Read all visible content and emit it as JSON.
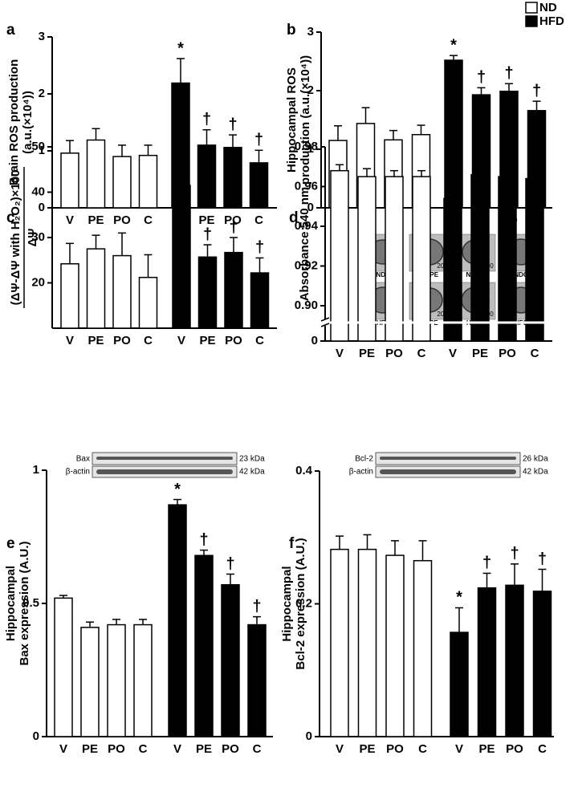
{
  "legend": [
    {
      "name": "ND",
      "color": "#ffffff"
    },
    {
      "name": "HFD",
      "color": "#000000"
    }
  ],
  "micrographs": {
    "labels": [
      "NDV",
      "NDPE",
      "NDPO",
      "NDC",
      "HFV",
      "HFPE",
      "HFPO",
      "HFC"
    ],
    "scale_label": "200"
  },
  "blots": [
    {
      "rows": [
        {
          "label": "Bax",
          "size": "23 kDa"
        },
        {
          "label": "β-actin",
          "size": "42 kDa"
        }
      ]
    },
    {
      "rows": [
        {
          "label": "Bcl-2",
          "size": "26 kDa"
        },
        {
          "label": "β-actin",
          "size": "42 kDa"
        }
      ]
    }
  ],
  "chart_data": [
    {
      "type": "bar",
      "panel": "a",
      "ylabel": [
        "Brain ROS production",
        "(a.u.(×10⁴))"
      ],
      "categories": [
        "V",
        "PE",
        "PO",
        "C",
        "V",
        "PE",
        "PO",
        "C"
      ],
      "series": [
        {
          "color": "#ffffff",
          "values": [
            0.96,
            1.19,
            0.9,
            0.92,
            null,
            null,
            null,
            null
          ],
          "errors": [
            0.22,
            0.2,
            0.2,
            0.18,
            null,
            null,
            null,
            null
          ]
        },
        {
          "color": "#000000",
          "values": [
            null,
            null,
            null,
            null,
            2.19,
            1.1,
            1.06,
            0.79
          ],
          "errors": [
            null,
            null,
            null,
            null,
            0.43,
            0.27,
            0.22,
            0.22
          ]
        }
      ],
      "annotations": [
        null,
        null,
        null,
        null,
        "*",
        "†",
        "†",
        "†"
      ],
      "ylim": [
        0,
        3
      ],
      "yticks": [
        0,
        1,
        2,
        3
      ]
    },
    {
      "type": "bar",
      "panel": "b",
      "ylabel": [
        "Hippocampal ROS",
        "production (a.u.(×10⁴))"
      ],
      "categories": [
        "V",
        "PE",
        "PO",
        "C",
        "V",
        "PE",
        "PO",
        "C"
      ],
      "series": [
        {
          "color": "#ffffff",
          "values": [
            1.15,
            1.44,
            1.16,
            1.25,
            null,
            null,
            null,
            null
          ],
          "errors": [
            0.25,
            0.27,
            0.16,
            0.16,
            null,
            null,
            null,
            null
          ]
        },
        {
          "color": "#000000",
          "values": [
            null,
            null,
            null,
            null,
            2.52,
            1.93,
            1.99,
            1.66
          ],
          "errors": [
            null,
            null,
            null,
            null,
            0.08,
            0.12,
            0.13,
            0.16
          ]
        }
      ],
      "annotations": [
        null,
        null,
        null,
        null,
        "*",
        "†",
        "†",
        "†"
      ],
      "ylim": [
        0,
        3
      ],
      "yticks": [
        0,
        1,
        2,
        3
      ]
    },
    {
      "type": "bar",
      "panel": "c",
      "ylabel_fraction": [
        "(ΔΨ-ΔΨ with H₂O₂)×100",
        "ΔΨ"
      ],
      "categories": [
        "V",
        "PE",
        "PO",
        "C",
        "V",
        "PE",
        "PO",
        "C"
      ],
      "series": [
        {
          "color": "#ffffff",
          "values": [
            24.2,
            27.5,
            26,
            21.2,
            null,
            null,
            null,
            null
          ],
          "errors": [
            4.5,
            3,
            5,
            5,
            null,
            null,
            null,
            null
          ]
        },
        {
          "color": "#000000",
          "values": [
            null,
            null,
            null,
            null,
            41.5,
            25.7,
            26.7,
            22.2
          ],
          "errors": [
            null,
            null,
            null,
            null,
            5.5,
            2.7,
            3.3,
            3.3
          ]
        }
      ],
      "annotations": [
        null,
        null,
        null,
        null,
        "*",
        "†",
        "†",
        "†"
      ],
      "ylim": [
        10,
        50
      ],
      "yticks": [
        20,
        30,
        40,
        50
      ]
    },
    {
      "type": "bar",
      "panel": "d",
      "ylabel": [
        "Absorbance 540 nm"
      ],
      "categories": [
        "V",
        "PE",
        "PO",
        "C",
        "V",
        "PE",
        "PO",
        "C"
      ],
      "series": [
        {
          "color": "#ffffff",
          "values": [
            0.968,
            0.965,
            0.965,
            0.965,
            null,
            null,
            null,
            null
          ],
          "errors": [
            0.003,
            0.004,
            0.003,
            0.003,
            null,
            null,
            null,
            null
          ]
        },
        {
          "color": "#000000",
          "values": [
            null,
            null,
            null,
            null,
            0.954,
            0.966,
            0.965,
            0.964
          ],
          "errors": [
            null,
            null,
            null,
            null,
            0.003,
            0.003,
            0.003,
            0.002
          ]
        }
      ],
      "annotations": [
        null,
        null,
        null,
        null,
        "*",
        "†",
        "†",
        "†"
      ],
      "ylim": [
        0,
        0.98
      ],
      "axis_break": [
        0,
        0.9
      ],
      "yticks": [
        0,
        {
          "value": 0.9,
          "label": "0.90"
        },
        {
          "value": 0.92,
          "label": "0.92"
        },
        {
          "value": 0.94,
          "label": "0.94"
        },
        {
          "value": 0.96,
          "label": "0.96"
        },
        {
          "value": 0.98,
          "label": "0.98"
        }
      ]
    },
    {
      "type": "bar",
      "panel": "e",
      "ylabel": [
        "Hippocampal",
        "Bax expression (A.U.)"
      ],
      "categories": [
        "V",
        "PE",
        "PO",
        "C",
        "V",
        "PE",
        "PO",
        "C"
      ],
      "series": [
        {
          "color": "#ffffff",
          "values": [
            0.52,
            0.41,
            0.42,
            0.42,
            null,
            null,
            null,
            null
          ],
          "errors": [
            0.01,
            0.02,
            0.02,
            0.02,
            null,
            null,
            null,
            null
          ]
        },
        {
          "color": "#000000",
          "values": [
            null,
            null,
            null,
            null,
            0.87,
            0.68,
            0.57,
            0.42
          ],
          "errors": [
            null,
            null,
            null,
            null,
            0.02,
            0.02,
            0.04,
            0.03
          ]
        }
      ],
      "annotations": [
        null,
        null,
        null,
        null,
        "*",
        "†",
        "†",
        "†"
      ],
      "ylim": [
        0,
        1
      ],
      "yticks": [
        0,
        0.5,
        1
      ]
    },
    {
      "type": "bar",
      "panel": "f",
      "ylabel": [
        "Hippocampal",
        "Bcl-2 expression (A.U.)"
      ],
      "categories": [
        "V",
        "PE",
        "PO",
        "C",
        "V",
        "PE",
        "PO",
        "C"
      ],
      "series": [
        {
          "color": "#ffffff",
          "values": [
            0.282,
            0.282,
            0.273,
            0.265,
            null,
            null,
            null,
            null
          ],
          "errors": [
            0.02,
            0.022,
            0.022,
            0.03,
            null,
            null,
            null,
            null
          ]
        },
        {
          "color": "#000000",
          "values": [
            null,
            null,
            null,
            null,
            0.157,
            0.224,
            0.228,
            0.219
          ],
          "errors": [
            null,
            null,
            null,
            null,
            0.037,
            0.022,
            0.032,
            0.033
          ]
        }
      ],
      "annotations": [
        null,
        null,
        null,
        null,
        "*",
        "†",
        "†",
        "†"
      ],
      "ylim": [
        0,
        0.4
      ],
      "yticks": [
        0,
        0.2,
        0.4
      ]
    }
  ]
}
